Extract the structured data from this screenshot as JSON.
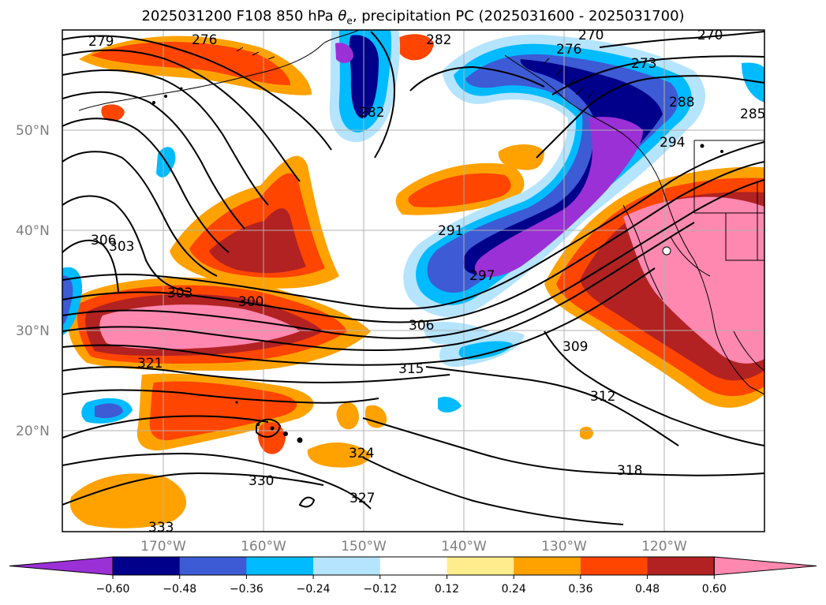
{
  "title": {
    "prefix": "2025031200 F108 850 hPa ",
    "theta": "θ",
    "sub": "e",
    "suffix": ", precipitation PC (2025031600 - 2025031700)"
  },
  "latitude_labels": [
    "50°N",
    "40°N",
    "30°N",
    "20°N"
  ],
  "longitude_labels": [
    "170°W",
    "160°W",
    "150°W",
    "140°W",
    "130°W",
    "120°W"
  ],
  "contour_labels": [
    "279",
    "276",
    "282",
    "270",
    "276",
    "273",
    "270",
    "282",
    "288",
    "285",
    "294",
    "291",
    "297",
    "306",
    "303",
    "303",
    "300",
    "306",
    "321",
    "315",
    "309",
    "312",
    "324",
    "330",
    "318",
    "327",
    "333"
  ],
  "colorbar": {
    "colors": [
      "#9b30d6",
      "#00008b",
      "#3c5bd5",
      "#00bbff",
      "#b5e4ff",
      "#ffffff",
      "#ffec8c",
      "#ffa200",
      "#ff4500",
      "#b22222",
      "#ff88b0"
    ],
    "tick_labels": [
      "−0.60",
      "−0.48",
      "−0.36",
      "−0.24",
      "−0.12",
      "0.12",
      "0.24",
      "0.36",
      "0.48",
      "0.60"
    ]
  }
}
